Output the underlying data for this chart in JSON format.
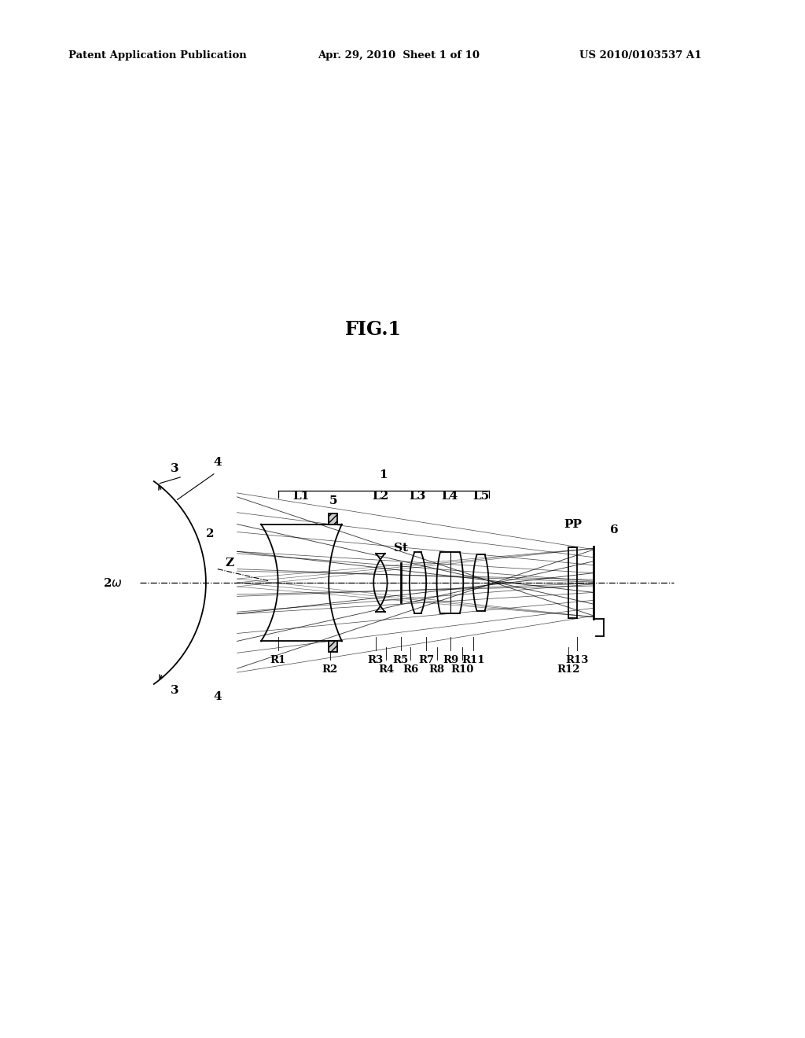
{
  "title": "FIG.1",
  "header_left": "Patent Application Publication",
  "header_center": "Apr. 29, 2010  Sheet 1 of 10",
  "header_right": "US 2010/0103537 A1",
  "background": "#ffffff",
  "fig_label": "1",
  "lens_labels": [
    "L1",
    "L2",
    "L3",
    "L4",
    "L5"
  ],
  "r_labels": [
    "R1",
    "R2",
    "R3",
    "R4",
    "R5",
    "R6",
    "R7",
    "R8",
    "R9",
    "R10",
    "R11",
    "R12",
    "R13"
  ]
}
